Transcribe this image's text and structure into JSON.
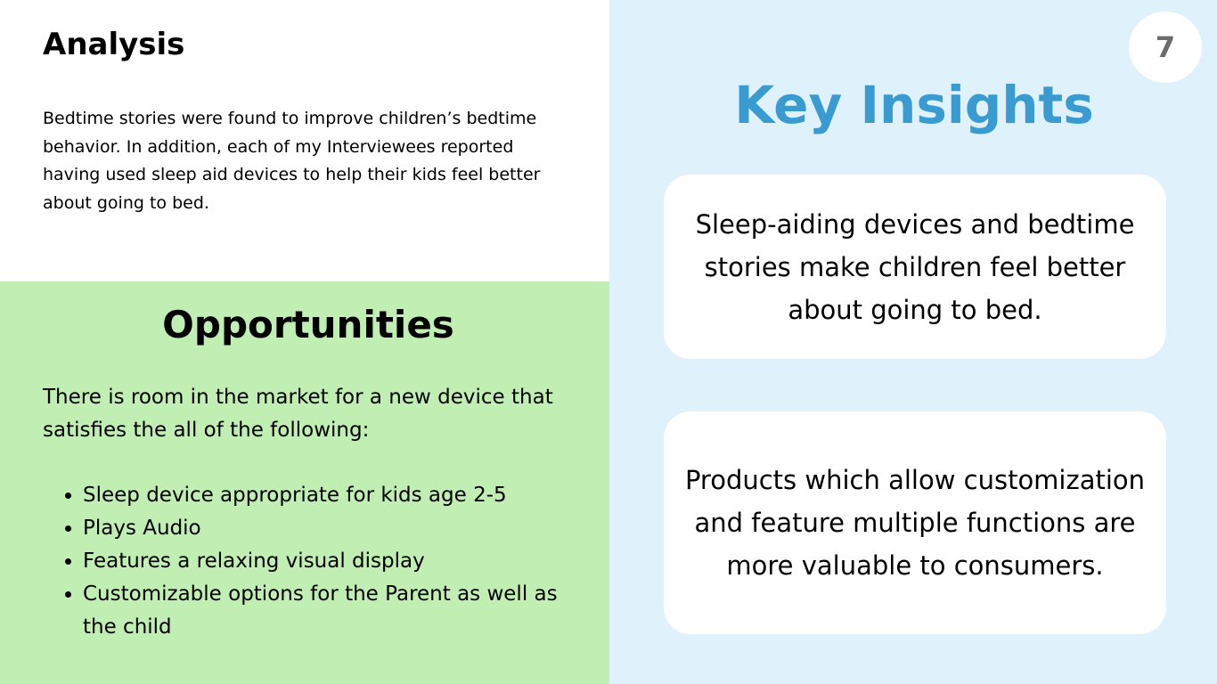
{
  "colors": {
    "opportunities_background": "#c0eeb3",
    "insights_background": "#dff2fc",
    "accent": "#3a9bd0",
    "badge_text": "#6b6b6b"
  },
  "analysis": {
    "title": "Analysis",
    "body": "Bedtime stories were found to improve children’s bedtime behavior. In addition, each of my Interviewees reported having used sleep aid devices to help their kids feel better about going to bed."
  },
  "opportunities": {
    "title": "Opportunities",
    "intro": "There is room in the market for a new device that satisfies the all of the following:",
    "items": [
      "Sleep device appropriate for kids age 2-5",
      "Plays Audio",
      "Features a relaxing visual display",
      "Customizable options for the Parent as well as the child"
    ]
  },
  "insights": {
    "page_number": "7",
    "title": "Key Insights",
    "cards": [
      "Sleep-aiding devices and bedtime stories make children feel better about going to bed.",
      "Products which allow customization and feature multiple functions are more valuable to consumers."
    ]
  }
}
